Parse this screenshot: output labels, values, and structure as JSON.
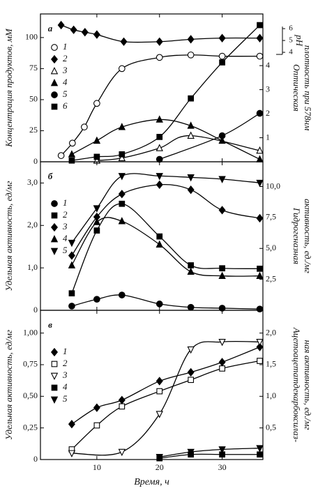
{
  "chart_data": [
    {
      "type": "line",
      "panel_label": "а",
      "ylabel": "Концентрация продуктов, мМ",
      "y2label": [
        "Оптическая",
        "плотность при 578нм"
      ],
      "y3label": "pH",
      "xlim": [
        1,
        36.5
      ],
      "xticks": [
        10,
        20,
        30
      ],
      "ylim": [
        0,
        119
      ],
      "yticks": [
        0,
        25,
        50,
        75,
        100
      ],
      "y2lim": [
        0,
        6.15
      ],
      "y2ticks": [
        1,
        2,
        3,
        4
      ],
      "y3lim": [
        -5.24,
        7.24
      ],
      "y3ticks": [
        4,
        5,
        6
      ],
      "legend": "upper left",
      "series": [
        {
          "name": "1",
          "marker": "circle-open",
          "color": "#000",
          "x": [
            4.3,
            6.1,
            8,
            10,
            14,
            20,
            25,
            30,
            36
          ],
          "values": [
            5,
            15,
            28,
            47,
            75,
            84,
            86,
            85,
            85
          ]
        },
        {
          "name": "2",
          "marker": "diamond",
          "color": "#000",
          "axis": "y3",
          "x": [
            4.3,
            6.3,
            8.1,
            10,
            14.3,
            20,
            25,
            30,
            36
          ],
          "values": [
            6.3,
            5.9,
            5.7,
            5.5,
            4.9,
            4.9,
            5.1,
            5.2,
            5.2
          ]
        },
        {
          "name": "3",
          "marker": "triangle-open",
          "color": "#000",
          "x": [
            10,
            14,
            20,
            25,
            36
          ],
          "values": [
            1,
            3,
            11,
            21,
            9
          ]
        },
        {
          "name": "4",
          "marker": "triangle",
          "color": "#000",
          "x": [
            6,
            10,
            14,
            20,
            25,
            30,
            36
          ],
          "values": [
            6,
            17,
            28,
            34,
            29,
            17,
            2
          ]
        },
        {
          "name": "5",
          "marker": "circle",
          "color": "#000",
          "x": [
            20,
            30,
            36
          ],
          "values": [
            2,
            21,
            39
          ]
        },
        {
          "name": "6",
          "marker": "square",
          "color": "#000",
          "x": [
            6,
            10,
            14,
            20,
            25,
            30,
            36
          ],
          "values": [
            1,
            4,
            6,
            20,
            51,
            80,
            110
          ]
        }
      ]
    },
    {
      "type": "line",
      "panel_label": "б",
      "ylabel": "Удельная активность, ед/мг",
      "y2label": [
        "Гидрогеназная",
        "активность, ед./мг"
      ],
      "xlim": [
        1,
        36.5
      ],
      "xticks": [
        10,
        20,
        30
      ],
      "ylim": [
        0,
        3.5
      ],
      "yticks": [
        0,
        {
          "value": 1,
          "label": "1,0"
        },
        {
          "value": 2,
          "label": "2,0"
        },
        {
          "value": 3,
          "label": "3,0"
        }
      ],
      "y2lim": [
        0,
        12
      ],
      "y2ticks": [
        {
          "value": 2.5,
          "label": "2,5"
        },
        {
          "value": 5,
          "label": "5,0"
        },
        {
          "value": 7.5,
          "label": "7,5"
        },
        {
          "value": 10,
          "label": "10,0"
        }
      ],
      "legend": "upper left",
      "series": [
        {
          "name": "1",
          "marker": "circle",
          "color": "#000",
          "x": [
            6,
            10,
            14,
            20,
            25,
            30,
            36
          ],
          "values": [
            0.1,
            0.26,
            0.36,
            0.15,
            0.07,
            0.05,
            0.03
          ]
        },
        {
          "name": "2",
          "marker": "square",
          "color": "#000",
          "x": [
            6,
            10,
            14,
            20,
            25,
            30,
            36
          ],
          "values": [
            0.4,
            1.88,
            2.51,
            1.74,
            1.06,
            0.99,
            0.98
          ]
        },
        {
          "name": "3",
          "marker": "diamond",
          "color": "#000",
          "x": [
            6,
            10,
            14,
            20,
            25,
            30,
            36
          ],
          "values": [
            1.29,
            2.2,
            2.74,
            2.96,
            2.84,
            2.36,
            2.17
          ]
        },
        {
          "name": "4",
          "marker": "triangle",
          "color": "#000",
          "x": [
            6,
            10,
            14,
            20,
            25,
            30,
            36
          ],
          "values": [
            1.06,
            2.08,
            2.1,
            1.55,
            0.91,
            0.81,
            0.81
          ]
        },
        {
          "name": "5",
          "marker": "triangle-down",
          "color": "#000",
          "axis": "y2",
          "x": [
            6,
            10,
            14,
            20,
            25,
            30,
            36
          ],
          "values": [
            5.45,
            8.24,
            10.85,
            10.85,
            10.74,
            10.6,
            10.3
          ]
        }
      ]
    },
    {
      "type": "line",
      "panel_label": "в",
      "ylabel": "Удельная активность, ед/мг",
      "y2label": [
        "Ацетоацетатдекарбоксилаз-",
        "ная активность, ед./мг"
      ],
      "xlabel": "Время, ч",
      "xlim": [
        1,
        36.5
      ],
      "xticks": [
        10,
        20,
        30
      ],
      "ylim": [
        0,
        1.18
      ],
      "yticks": [
        0,
        {
          "value": 0.25,
          "label": "0,25"
        },
        {
          "value": 0.5,
          "label": "0,50"
        },
        {
          "value": 0.75,
          "label": "0,75"
        },
        {
          "value": 1,
          "label": "1,00"
        }
      ],
      "y2lim": [
        0,
        2.36
      ],
      "y2ticks": [
        {
          "value": 0.5,
          "label": "0,5"
        },
        {
          "value": 1,
          "label": "1,0"
        },
        {
          "value": 1.5,
          "label": "1,5"
        },
        {
          "value": 2,
          "label": "2,0"
        }
      ],
      "legend": "upper left",
      "series": [
        {
          "name": "1",
          "marker": "diamond",
          "color": "#000",
          "x": [
            6,
            10,
            14,
            20,
            25,
            30,
            36
          ],
          "values": [
            0.28,
            0.41,
            0.47,
            0.62,
            0.69,
            0.77,
            0.89
          ]
        },
        {
          "name": "2",
          "marker": "square-open",
          "color": "#000",
          "x": [
            6,
            10,
            14,
            20,
            25,
            30,
            36
          ],
          "values": [
            0.08,
            0.27,
            0.42,
            0.54,
            0.63,
            0.72,
            0.78
          ]
        },
        {
          "name": "3",
          "marker": "triangle-down-open",
          "color": "#000",
          "x": [
            6,
            14,
            20,
            25,
            30,
            36
          ],
          "values": [
            0.05,
            0.06,
            0.36,
            0.87,
            0.93,
            0.93
          ]
        },
        {
          "name": "4",
          "marker": "square",
          "color": "#000",
          "x": [
            20,
            25,
            30,
            36
          ],
          "values": [
            0.01,
            0.04,
            0.04,
            0.04
          ]
        },
        {
          "name": "5",
          "marker": "triangle-down",
          "color": "#000",
          "x": [
            20,
            25,
            30,
            36
          ],
          "values": [
            0.02,
            0.06,
            0.08,
            0.09
          ]
        }
      ]
    }
  ]
}
